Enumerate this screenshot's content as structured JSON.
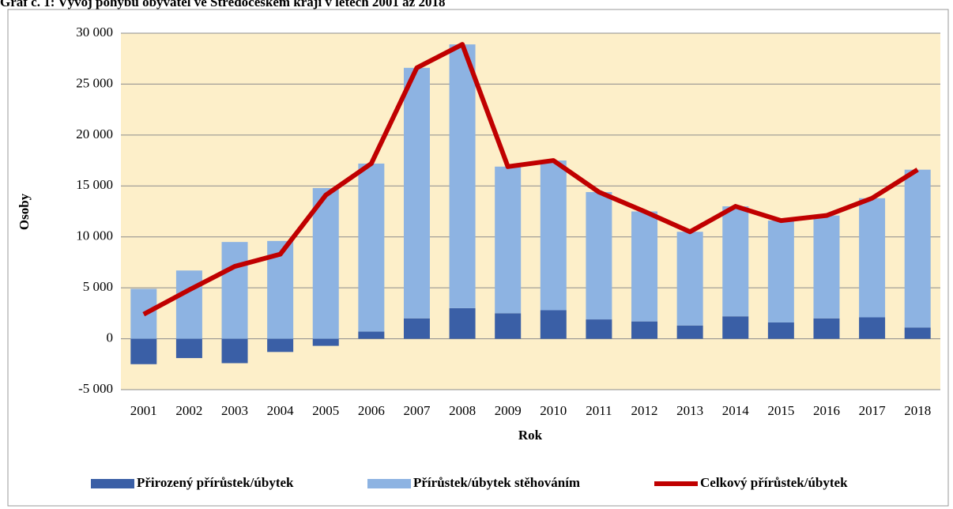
{
  "chart_data": {
    "type": "bar",
    "stacked": true,
    "title": "Graf č. 1: Vývoj pohybu obyvatel ve Středočeském kraji v letech 2001 až 2018",
    "x_label": "Rok",
    "y_label": "Osoby",
    "categories": [
      "2001",
      "2002",
      "2003",
      "2004",
      "2005",
      "2006",
      "2007",
      "2008",
      "2009",
      "2010",
      "2011",
      "2012",
      "2013",
      "2014",
      "2015",
      "2016",
      "2017",
      "2018"
    ],
    "series": [
      {
        "name": "Přirozený přírůstek/úbytek",
        "type": "bar",
        "color": "#3a5fa6",
        "values": [
          -2500,
          -1900,
          -2400,
          -1300,
          -700,
          700,
          2000,
          3000,
          2500,
          2800,
          1900,
          1700,
          1300,
          2200,
          1600,
          2000,
          2100,
          1100
        ]
      },
      {
        "name": "Přírůstek/úbytek stěhováním",
        "type": "bar",
        "color": "#8db3e2",
        "values": [
          4900,
          6700,
          9500,
          9600,
          14800,
          16500,
          24600,
          25900,
          14400,
          14700,
          12500,
          10800,
          9200,
          10800,
          10000,
          10100,
          11700,
          15500
        ]
      },
      {
        "name": "Celkový přírůstek/úbytek",
        "type": "line",
        "color": "#c00000",
        "values": [
          2400,
          4800,
          7100,
          8300,
          14100,
          17200,
          26600,
          28900,
          16900,
          17500,
          14400,
          12500,
          10500,
          13000,
          11600,
          12100,
          13800,
          16600
        ]
      }
    ],
    "ylim": [
      -5000,
      30000
    ],
    "yticks": [
      {
        "value": -5000,
        "label": "-5 000"
      },
      0,
      {
        "value": 5000,
        "label": "5 000"
      },
      {
        "value": 10000,
        "label": "10 000"
      },
      {
        "value": 15000,
        "label": "15 000"
      },
      {
        "value": 20000,
        "label": "20 000"
      },
      {
        "value": 25000,
        "label": "25 000"
      },
      {
        "value": 30000,
        "label": "30 000"
      }
    ],
    "grid": true,
    "legend": "bottom",
    "plot_background": "#fdefc9"
  }
}
